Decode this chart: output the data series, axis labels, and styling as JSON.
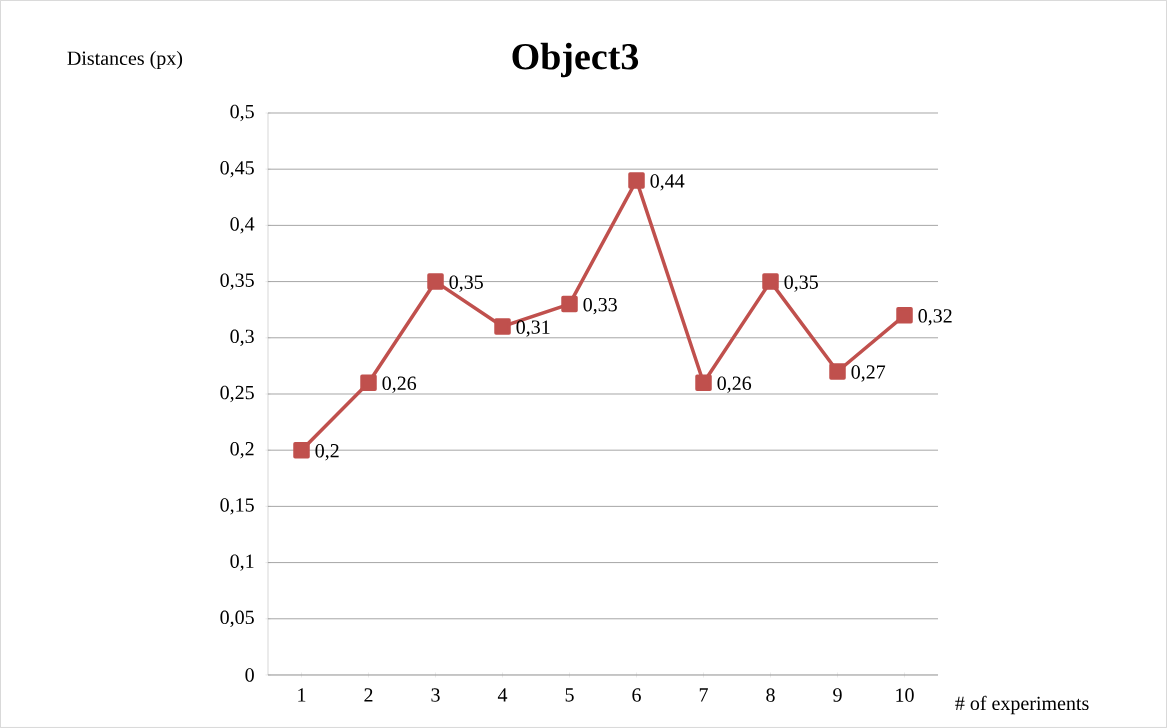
{
  "chart_data": {
    "type": "line",
    "title": "Object3",
    "xlabel": "# of experiments",
    "ylabel": "Distances (px)",
    "categories": [
      "1",
      "2",
      "3",
      "4",
      "5",
      "6",
      "7",
      "8",
      "9",
      "10"
    ],
    "values": [
      0.2,
      0.26,
      0.35,
      0.31,
      0.33,
      0.44,
      0.26,
      0.35,
      0.27,
      0.32
    ],
    "value_labels": [
      "0,2",
      "0,26",
      "0,35",
      "0,31",
      "0,33",
      "0,44",
      "0,26",
      "0,35",
      "0,27",
      "0,32"
    ],
    "color": "#c0504d",
    "marker": "square",
    "line_style": "solid",
    "grid": "y",
    "ylim": [
      0,
      0.5
    ],
    "yticks": [
      0,
      {
        "value": 0.05,
        "label": "0,05"
      },
      {
        "value": 0.1,
        "label": "0,1"
      },
      {
        "value": 0.15,
        "label": "0,15"
      },
      {
        "value": 0.2,
        "label": "0,2"
      },
      {
        "value": 0.25,
        "label": "0,25"
      },
      {
        "value": 0.3,
        "label": "0,3"
      },
      {
        "value": 0.35,
        "label": "0,35"
      },
      {
        "value": 0.4,
        "label": "0,4"
      },
      {
        "value": 0.45,
        "label": "0,45"
      },
      {
        "value": 0.5,
        "label": "0,5"
      }
    ]
  }
}
